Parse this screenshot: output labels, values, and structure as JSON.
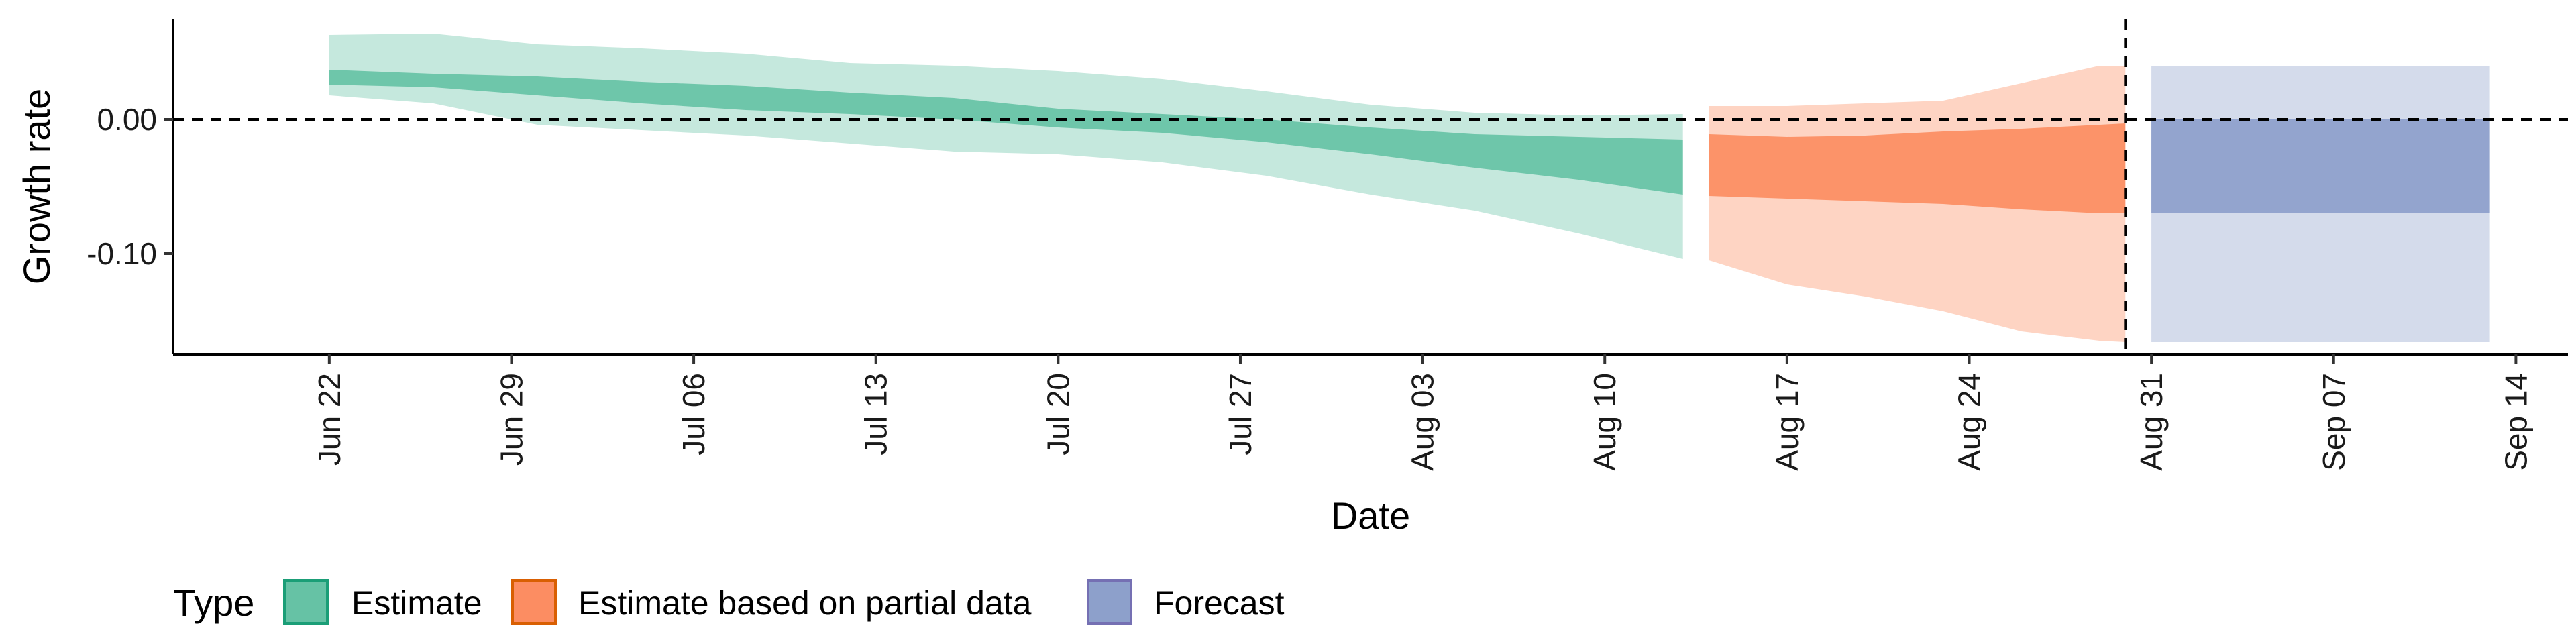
{
  "chart_data": {
    "type": "area",
    "xlabel": "Date",
    "ylabel": "Growth rate",
    "ylim": [
      -0.175,
      0.075
    ],
    "y_ticks": [
      {
        "value": 0.0,
        "label": "0.00"
      },
      {
        "value": -0.1,
        "label": "-0.10"
      }
    ],
    "x_range": [
      "2020-06-16",
      "2020-09-16"
    ],
    "x_ticks": [
      {
        "date": "2020-06-22",
        "label": "Jun 22"
      },
      {
        "date": "2020-06-29",
        "label": "Jun 29"
      },
      {
        "date": "2020-07-06",
        "label": "Jul 06"
      },
      {
        "date": "2020-07-13",
        "label": "Jul 13"
      },
      {
        "date": "2020-07-20",
        "label": "Jul 20"
      },
      {
        "date": "2020-07-27",
        "label": "Jul 27"
      },
      {
        "date": "2020-08-03",
        "label": "Aug 03"
      },
      {
        "date": "2020-08-10",
        "label": "Aug 10"
      },
      {
        "date": "2020-08-17",
        "label": "Aug 17"
      },
      {
        "date": "2020-08-24",
        "label": "Aug 24"
      },
      {
        "date": "2020-08-31",
        "label": "Aug 31"
      },
      {
        "date": "2020-09-07",
        "label": "Sep 07"
      },
      {
        "date": "2020-09-14",
        "label": "Sep 14"
      }
    ],
    "reference_lines": [
      {
        "axis": "y",
        "value": 0.0,
        "style": "dashed"
      },
      {
        "axis": "x",
        "date": "2020-08-30",
        "style": "dashed"
      }
    ],
    "legend": {
      "title": "Type",
      "position": "bottom",
      "entries": [
        {
          "label": "Estimate",
          "fill": "#66c2a5",
          "border": "#1b9e77"
        },
        {
          "label": "Estimate based on partial data",
          "fill": "#fc8d62",
          "border": "#d95f02"
        },
        {
          "label": "Forecast",
          "fill": "#8da0cb",
          "border": "#7570b3"
        }
      ]
    },
    "series": [
      {
        "name": "Estimate",
        "color": "#66c2a5",
        "points": [
          {
            "date": "2020-06-22",
            "lower90": 0.018,
            "upper90": 0.063,
            "lower50": 0.026,
            "upper50": 0.037
          },
          {
            "date": "2020-06-26",
            "lower90": 0.012,
            "upper90": 0.064,
            "lower50": 0.024,
            "upper50": 0.034
          },
          {
            "date": "2020-06-30",
            "lower90": -0.004,
            "upper90": 0.056,
            "lower50": 0.018,
            "upper50": 0.032
          },
          {
            "date": "2020-07-04",
            "lower90": -0.008,
            "upper90": 0.053,
            "lower50": 0.012,
            "upper50": 0.028
          },
          {
            "date": "2020-07-08",
            "lower90": -0.012,
            "upper90": 0.049,
            "lower50": 0.007,
            "upper50": 0.025
          },
          {
            "date": "2020-07-12",
            "lower90": -0.018,
            "upper90": 0.042,
            "lower50": 0.004,
            "upper50": 0.02
          },
          {
            "date": "2020-07-16",
            "lower90": -0.024,
            "upper90": 0.04,
            "lower50": 0.0,
            "upper50": 0.016
          },
          {
            "date": "2020-07-20",
            "lower90": -0.026,
            "upper90": 0.036,
            "lower50": -0.006,
            "upper50": 0.008
          },
          {
            "date": "2020-07-24",
            "lower90": -0.032,
            "upper90": 0.03,
            "lower50": -0.01,
            "upper50": 0.004
          },
          {
            "date": "2020-07-28",
            "lower90": -0.042,
            "upper90": 0.021,
            "lower50": -0.017,
            "upper50": 0.0
          },
          {
            "date": "2020-08-01",
            "lower90": -0.056,
            "upper90": 0.011,
            "lower50": -0.026,
            "upper50": -0.006
          },
          {
            "date": "2020-08-05",
            "lower90": -0.068,
            "upper90": 0.005,
            "lower50": -0.036,
            "upper50": -0.011
          },
          {
            "date": "2020-08-09",
            "lower90": -0.085,
            "upper90": 0.003,
            "lower50": -0.045,
            "upper50": -0.013
          },
          {
            "date": "2020-08-13",
            "lower90": -0.104,
            "upper90": 0.004,
            "lower50": -0.056,
            "upper50": -0.015
          }
        ]
      },
      {
        "name": "Estimate based on partial data",
        "color": "#fc8d62",
        "points": [
          {
            "date": "2020-08-14",
            "lower90": -0.105,
            "upper90": 0.01,
            "lower50": -0.057,
            "upper50": -0.011
          },
          {
            "date": "2020-08-17",
            "lower90": -0.123,
            "upper90": 0.01,
            "lower50": -0.059,
            "upper50": -0.013
          },
          {
            "date": "2020-08-20",
            "lower90": -0.132,
            "upper90": 0.012,
            "lower50": -0.061,
            "upper50": -0.012
          },
          {
            "date": "2020-08-23",
            "lower90": -0.143,
            "upper90": 0.014,
            "lower50": -0.063,
            "upper50": -0.009
          },
          {
            "date": "2020-08-26",
            "lower90": -0.158,
            "upper90": 0.027,
            "lower50": -0.067,
            "upper50": -0.007
          },
          {
            "date": "2020-08-29",
            "lower90": -0.165,
            "upper90": 0.04,
            "lower50": -0.07,
            "upper50": -0.004
          },
          {
            "date": "2020-08-30",
            "lower90": -0.166,
            "upper90": 0.04,
            "lower50": -0.07,
            "upper50": -0.003
          }
        ]
      },
      {
        "name": "Forecast",
        "color": "#8da0cb",
        "points": [
          {
            "date": "2020-08-31",
            "lower90": -0.166,
            "upper90": 0.04,
            "lower50": -0.07,
            "upper50": 0.0
          },
          {
            "date": "2020-09-13",
            "lower90": -0.166,
            "upper90": 0.04,
            "lower50": -0.07,
            "upper50": 0.0
          }
        ]
      }
    ]
  }
}
